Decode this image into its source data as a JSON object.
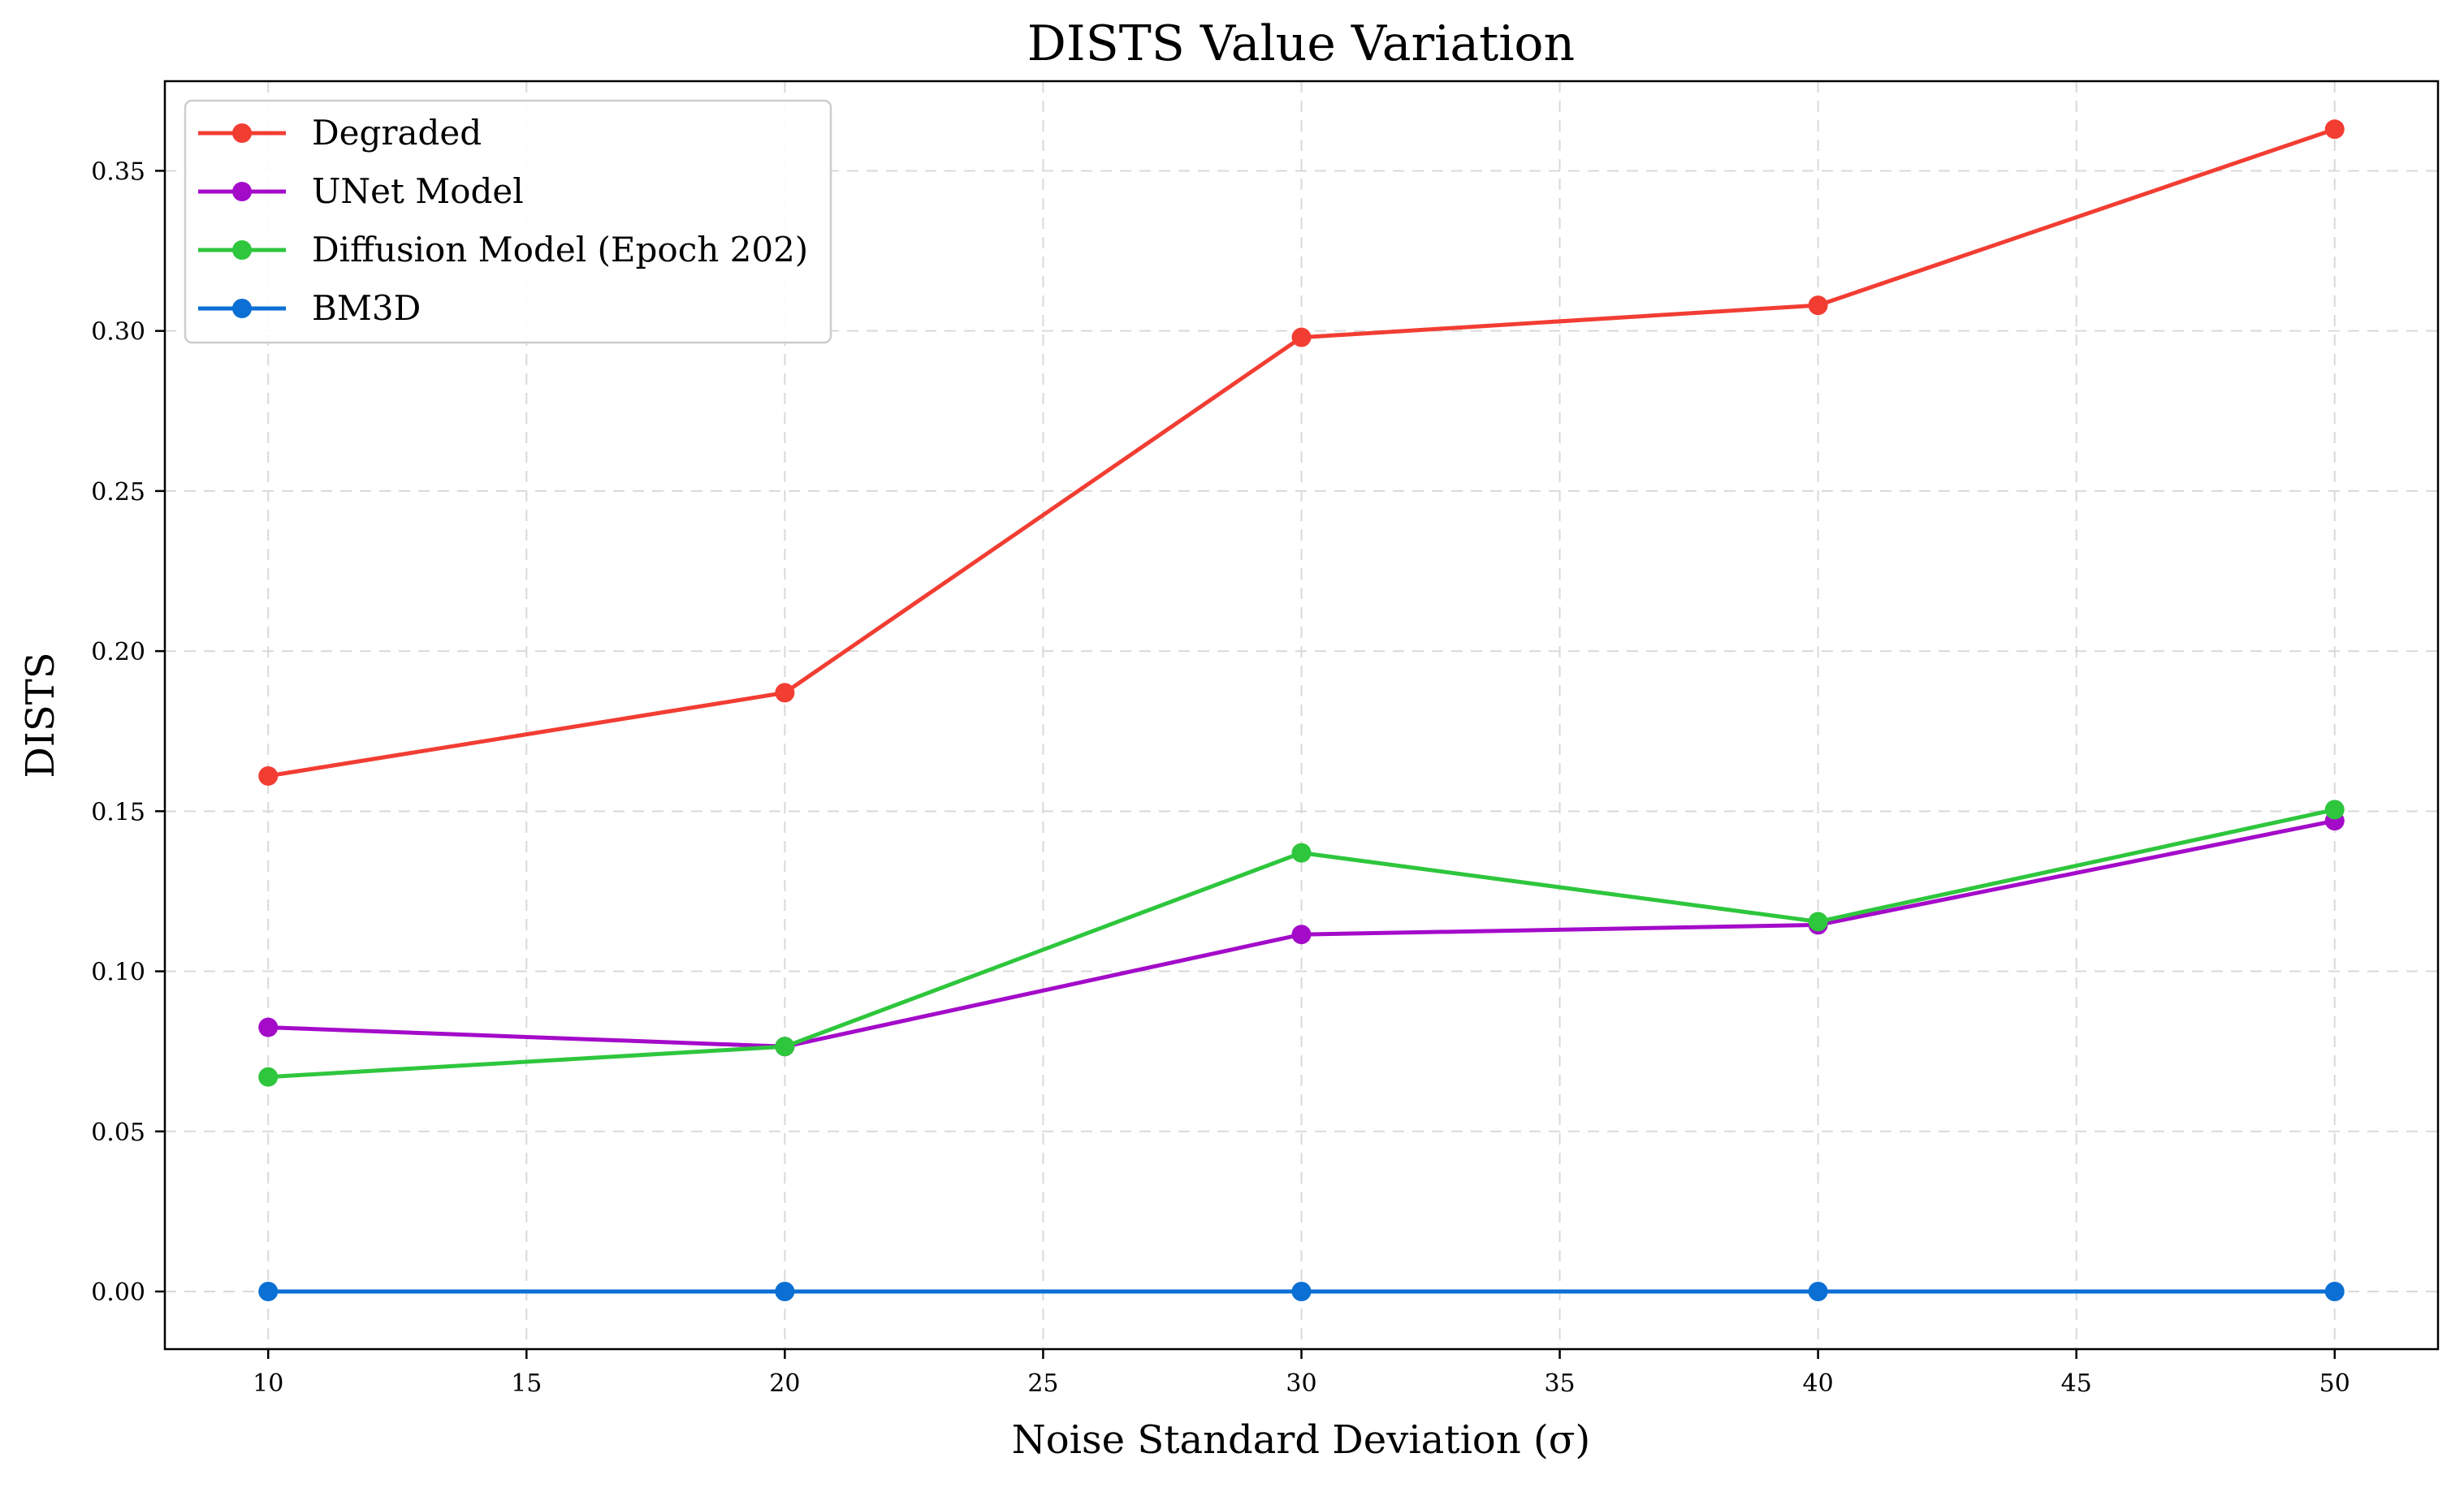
{
  "chart_data": {
    "type": "line",
    "title": "DISTS Value Variation",
    "xlabel": "Noise Standard Deviation (σ)",
    "ylabel": "DISTS",
    "x": [
      10,
      20,
      30,
      40,
      50
    ],
    "xlim": [
      8,
      52
    ],
    "ylim": [
      -0.018,
      0.378
    ],
    "xticks": [
      10,
      15,
      20,
      25,
      30,
      35,
      40,
      45,
      50
    ],
    "xtick_labels": [
      "10",
      "15",
      "20",
      "25",
      "30",
      "35",
      "40",
      "45",
      "50"
    ],
    "yticks": [
      0,
      0.05,
      0.1,
      0.15,
      0.2,
      0.25,
      0.3,
      0.35
    ],
    "ytick_labels": [
      "0.00",
      "0.05",
      "0.10",
      "0.15",
      "0.20",
      "0.25",
      "0.30",
      "0.35"
    ],
    "grid": true,
    "legend_position": "top-left",
    "series": [
      {
        "name": "Degraded",
        "color": "#f23d33",
        "values": [
          0.161,
          0.187,
          0.298,
          0.308,
          0.363
        ]
      },
      {
        "name": "UNet Model",
        "color": "#a40bc9",
        "values": [
          0.0825,
          0.0765,
          0.1115,
          0.1145,
          0.147
        ]
      },
      {
        "name": "Diffusion Model (Epoch 202)",
        "color": "#2ec63d",
        "values": [
          0.067,
          0.0765,
          0.137,
          0.1155,
          0.1505
        ]
      },
      {
        "name": "BM3D",
        "color": "#0b6fd3",
        "values": [
          0,
          0,
          0,
          0,
          0
        ]
      }
    ]
  }
}
